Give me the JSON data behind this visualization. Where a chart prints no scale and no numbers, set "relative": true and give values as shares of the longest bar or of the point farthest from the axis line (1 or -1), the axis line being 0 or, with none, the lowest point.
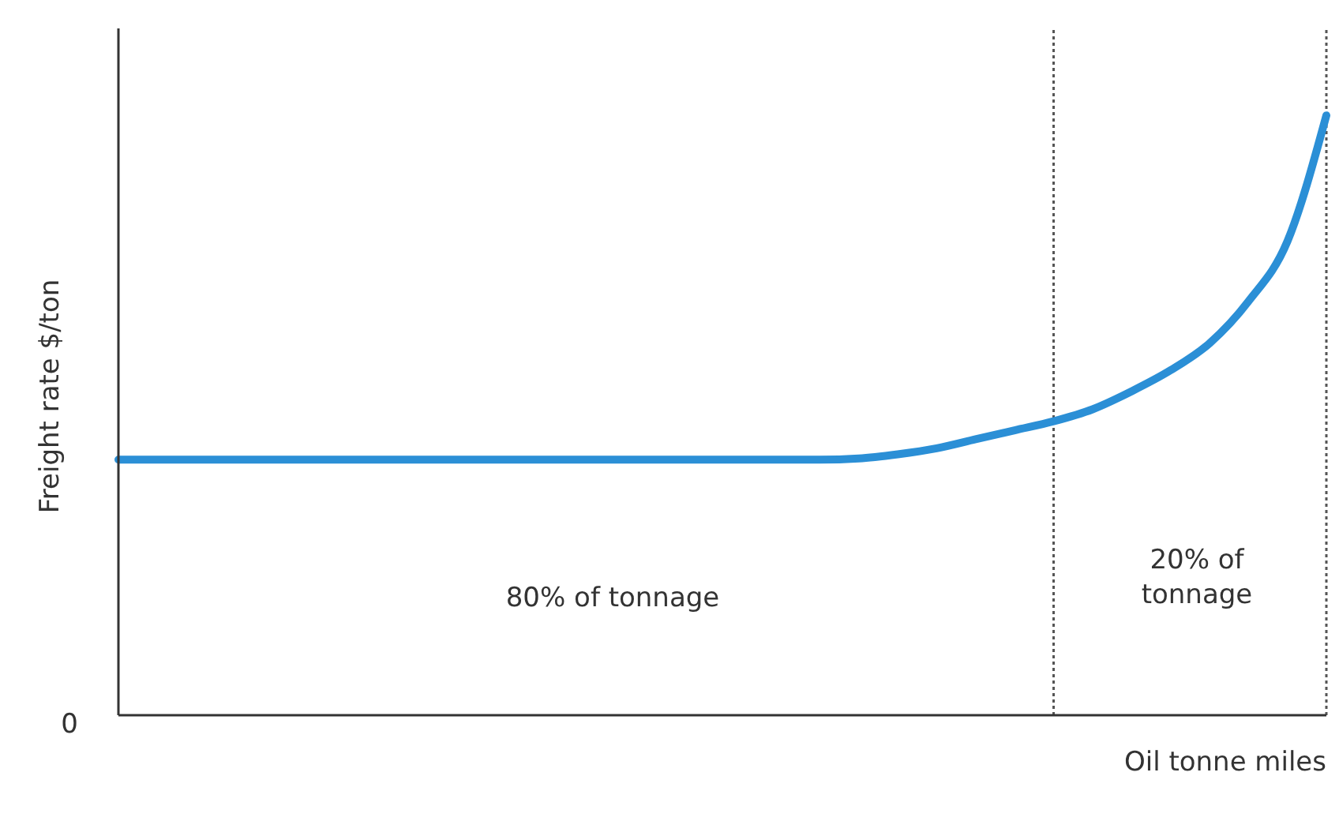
{
  "chart_data": {
    "type": "line",
    "relative": true,
    "xlabel": "Oil tonne miles",
    "ylabel": "Freight rate $/ton",
    "categories": [
      null,
      null,
      null,
      null,
      null,
      null,
      null,
      null,
      null,
      null,
      null,
      null,
      null,
      null,
      null,
      null,
      null,
      null,
      null,
      null,
      null,
      null,
      null,
      null,
      null,
      null,
      null,
      null,
      null,
      null,
      null,
      null
    ],
    "series": [
      {
        "color": "#2b8fd6",
        "values": [
          0.426,
          0.426,
          0.426,
          0.426,
          0.426,
          0.426,
          0.426,
          0.426,
          0.426,
          0.426,
          0.426,
          0.426,
          0.426,
          0.426,
          0.426,
          0.426,
          0.426,
          0.426,
          0.426,
          0.428,
          0.435,
          0.445,
          0.46,
          0.475,
          0.49,
          0.51,
          0.54,
          0.575,
          0.62,
          0.69,
          0.79,
          1
        ]
      }
    ],
    "annotations": [
      "80% of tonnage",
      "20% of tonnage",
      "0"
    ],
    "grid": false,
    "legend": false,
    "marker": "none",
    "line_style": "solid"
  }
}
